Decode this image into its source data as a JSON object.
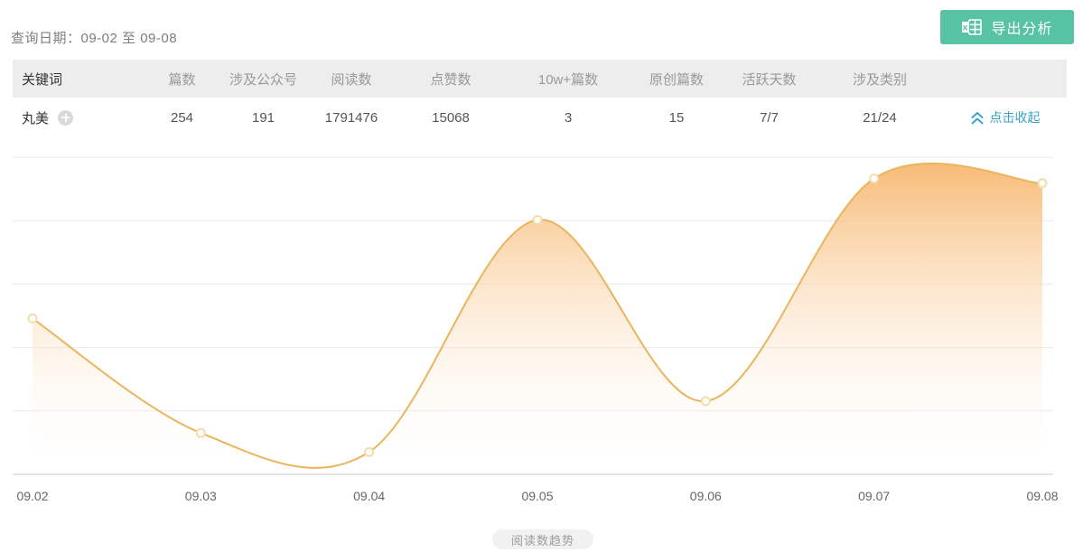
{
  "header": {
    "query_date_label": "查询日期：09-02 至 09-08",
    "export_button_label": "导出分析"
  },
  "table": {
    "columns": [
      "关键词",
      "篇数",
      "涉及公众号",
      "阅读数",
      "点赞数",
      "10w+篇数",
      "原创篇数",
      "活跃天数",
      "涉及类别",
      ""
    ],
    "row": {
      "keyword": "丸美",
      "values": [
        "254",
        "191",
        "1791476",
        "15068",
        "3",
        "15",
        "7/7",
        "21/24"
      ],
      "collapse_label": "点击收起"
    }
  },
  "chart_data": {
    "type": "area",
    "title": "阅读数趋势",
    "x": [
      "09.02",
      "09.03",
      "09.04",
      "09.05",
      "09.06",
      "09.07",
      "09.08"
    ],
    "values": [
      49,
      13,
      7,
      80,
      23,
      93,
      91.5
    ],
    "y_unit": "relative height % of chart max (y axis has no tick labels)",
    "ylim": [
      0,
      100
    ],
    "grid": true,
    "gridline_count": 6,
    "legend": "none",
    "smooth": true,
    "marker": "hollow-circle",
    "line_color": "#e9b55e",
    "area_top_color": "#f7b264",
    "area_bottom_color": "#ffffff",
    "marker_fill": "#fffef8",
    "marker_stroke": "#f0ddb2",
    "axis_label_color": "#666666",
    "gridline_color": "#eaeaea",
    "axisline_color": "#cccccc"
  },
  "footer": {
    "chart_caption": "阅读数趋势"
  },
  "colors": {
    "export_button_bg": "#58c3a4",
    "collapse_link": "#3aa2c6",
    "table_header_bg": "#ededed",
    "table_header_text": "#999999",
    "table_cell_text": "#555555"
  }
}
